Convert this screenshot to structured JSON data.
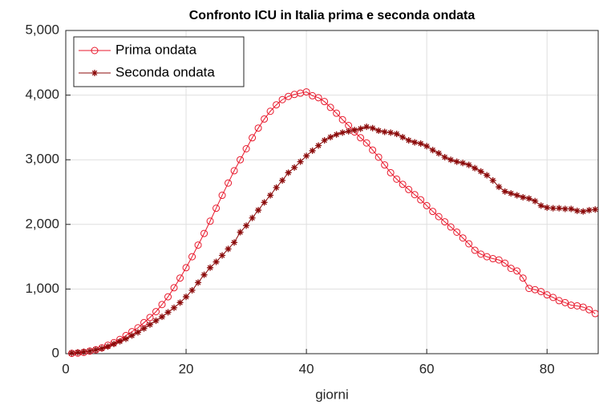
{
  "chart_data": {
    "type": "line",
    "title": "Confronto ICU in Italia prima e seconda ondata",
    "xlabel": "giorni",
    "x": [
      1,
      2,
      3,
      4,
      5,
      6,
      7,
      8,
      9,
      10,
      11,
      12,
      13,
      14,
      15,
      16,
      17,
      18,
      19,
      20,
      21,
      22,
      23,
      24,
      25,
      26,
      27,
      28,
      29,
      30,
      31,
      32,
      33,
      34,
      35,
      36,
      37,
      38,
      39,
      40,
      41,
      42,
      43,
      44,
      45,
      46,
      47,
      48,
      49,
      50,
      51,
      52,
      53,
      54,
      55,
      56,
      57,
      58,
      59,
      60,
      61,
      62,
      63,
      64,
      65,
      66,
      67,
      68,
      69,
      70,
      71,
      72,
      73,
      74,
      75,
      76,
      77,
      78,
      79,
      80,
      81,
      82,
      83,
      84,
      85,
      86,
      87,
      88
    ],
    "series": [
      {
        "name": "Prima ondata",
        "color": "#e8192c",
        "marker": "circle",
        "values": [
          5,
          10,
          20,
          40,
          60,
          90,
          130,
          170,
          220,
          280,
          340,
          400,
          480,
          560,
          650,
          760,
          880,
          1020,
          1170,
          1330,
          1500,
          1680,
          1860,
          2050,
          2250,
          2450,
          2640,
          2830,
          3000,
          3170,
          3340,
          3490,
          3630,
          3750,
          3850,
          3930,
          3980,
          4010,
          4030,
          4050,
          3990,
          3960,
          3900,
          3810,
          3720,
          3620,
          3530,
          3430,
          3340,
          3260,
          3150,
          3040,
          2920,
          2800,
          2700,
          2620,
          2540,
          2460,
          2380,
          2290,
          2200,
          2120,
          2040,
          1960,
          1880,
          1790,
          1700,
          1600,
          1540,
          1500,
          1470,
          1450,
          1400,
          1320,
          1280,
          1170,
          1010,
          990,
          960,
          910,
          870,
          820,
          790,
          750,
          740,
          720,
          680,
          620
        ]
      },
      {
        "name": "Seconda ondata",
        "color": "#8b0a0a",
        "marker": "star",
        "values": [
          10,
          20,
          30,
          40,
          60,
          80,
          110,
          150,
          190,
          230,
          280,
          330,
          390,
          450,
          510,
          570,
          640,
          710,
          790,
          880,
          980,
          1100,
          1220,
          1330,
          1420,
          1520,
          1620,
          1720,
          1880,
          1980,
          2100,
          2220,
          2340,
          2450,
          2570,
          2680,
          2800,
          2880,
          2970,
          3060,
          3140,
          3220,
          3300,
          3350,
          3390,
          3420,
          3440,
          3460,
          3480,
          3510,
          3490,
          3450,
          3430,
          3420,
          3400,
          3350,
          3300,
          3270,
          3250,
          3210,
          3150,
          3100,
          3040,
          3000,
          2970,
          2950,
          2920,
          2870,
          2820,
          2760,
          2680,
          2580,
          2510,
          2480,
          2450,
          2420,
          2400,
          2360,
          2290,
          2260,
          2250,
          2250,
          2240,
          2240,
          2210,
          2200,
          2220,
          2230
        ]
      }
    ],
    "xlim": [
      0,
      88.5
    ],
    "ylim": [
      0,
      5000
    ],
    "xticks": [
      0,
      20,
      40,
      60,
      80
    ],
    "yticks": [
      0,
      {
        "value": 1000,
        "label": "1,000"
      },
      {
        "value": 2000,
        "label": "2,000"
      },
      {
        "value": 3000,
        "label": "3,000"
      },
      {
        "value": 4000,
        "label": "4,000"
      },
      {
        "value": 5000,
        "label": "5,000"
      }
    ],
    "grid": true,
    "legend": "upper left"
  }
}
